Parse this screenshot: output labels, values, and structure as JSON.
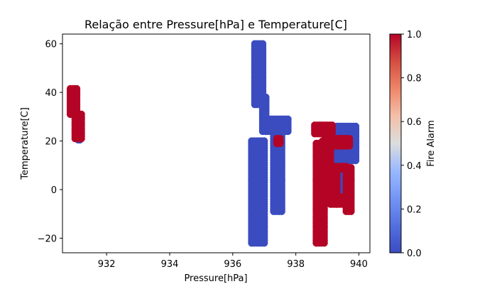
{
  "chart_data": {
    "type": "scatter",
    "title": "Relação entre Pressure[hPa] e Temperature[C]",
    "xlabel": "Pressure[hPa]",
    "ylabel": "Temperature[C]",
    "xlim": [
      930.6,
      940.35
    ],
    "ylim": [
      -26,
      64
    ],
    "xticks": [
      932,
      934,
      936,
      938,
      940
    ],
    "yticks": [
      -20,
      0,
      20,
      40,
      60
    ],
    "grid": false,
    "colormap": "coolwarm",
    "colorbar": {
      "label": "Fire Alarm",
      "range": [
        0.0,
        1.0
      ],
      "ticks": [
        "0.0",
        "0.2",
        "0.4",
        "0.6",
        "0.8",
        "1.0"
      ],
      "low_color": "#3b4cc0",
      "high_color": "#b40426"
    },
    "series": [
      {
        "value": 0,
        "color": "#3b4cc0",
        "clusters": [
          {
            "x": [
              931.1,
              931.15
            ],
            "y": [
              20.5,
              21.5
            ]
          },
          {
            "x": [
              936.7,
              936.95
            ],
            "y": [
              35,
              60
            ]
          },
          {
            "x": [
              936.95,
              937.05
            ],
            "y": [
              24,
              38
            ]
          },
          {
            "x": [
              937.05,
              937.75
            ],
            "y": [
              24,
              29
            ]
          },
          {
            "x": [
              936.6,
              937.0
            ],
            "y": [
              -22,
              20
            ]
          },
          {
            "x": [
              937.3,
              937.55
            ],
            "y": [
              -9,
              23
            ]
          },
          {
            "x": [
              939.3,
              939.9
            ],
            "y": [
              12,
              26
            ]
          },
          {
            "x": [
              939.45,
              939.6
            ],
            "y": [
              -4,
              10
            ]
          }
        ]
      },
      {
        "value": 1,
        "color": "#b40426",
        "clusters": [
          {
            "x": [
              930.85,
              931.05
            ],
            "y": [
              31,
              41.5
            ]
          },
          {
            "x": [
              931.0,
              931.2
            ],
            "y": [
              21,
              31
            ]
          },
          {
            "x": [
              938.6,
              939.15
            ],
            "y": [
              23,
              26.5
            ]
          },
          {
            "x": [
              938.65,
              938.9
            ],
            "y": [
              -22,
              19
            ]
          },
          {
            "x": [
              938.85,
              939.1
            ],
            "y": [
              8,
              20
            ]
          },
          {
            "x": [
              938.95,
              939.7
            ],
            "y": [
              18,
              21
            ]
          },
          {
            "x": [
              939.05,
              939.6
            ],
            "y": [
              8.5,
              9.5
            ]
          },
          {
            "x": [
              939.1,
              939.3
            ],
            "y": [
              -6,
              8
            ]
          },
          {
            "x": [
              939.6,
              939.75
            ],
            "y": [
              -9,
              9
            ]
          },
          {
            "x": [
              939.3,
              939.55
            ],
            "y": [
              -6,
              -3
            ]
          },
          {
            "x": [
              937.4,
              937.5
            ],
            "y": [
              19,
              21
            ]
          }
        ]
      }
    ]
  }
}
